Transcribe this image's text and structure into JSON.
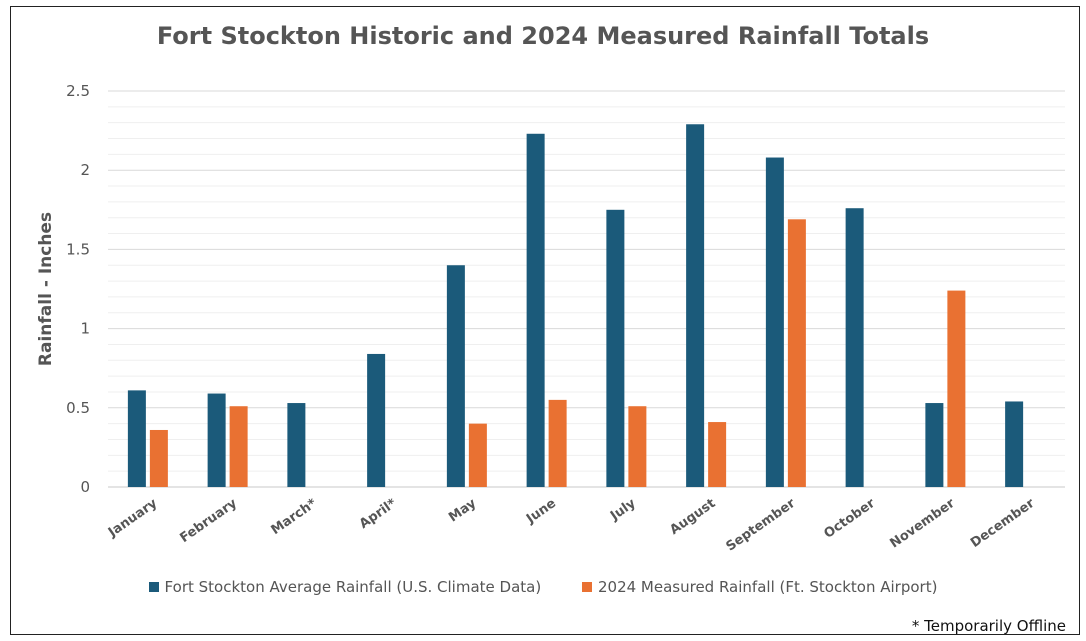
{
  "chart_data": {
    "type": "bar",
    "title": "Fort Stockton Historic and 2024 Measured Rainfall Totals",
    "ylabel": "Rainfall - Inches",
    "xlabel": "",
    "ylim": [
      0,
      2.5
    ],
    "yticks": [
      "0",
      "0.5",
      "1",
      "1.5",
      "2",
      "2.5"
    ],
    "categories": [
      "January",
      "February",
      "March*",
      "April*",
      "May",
      "June",
      "July",
      "August",
      "September",
      "October",
      "November",
      "December"
    ],
    "series": [
      {
        "name": "Fort Stockton Average Rainfall (U.S. Climate Data)",
        "color": "#1b5a7a",
        "values": [
          0.61,
          0.59,
          0.53,
          0.84,
          1.4,
          2.23,
          1.75,
          2.29,
          2.08,
          1.76,
          0.53,
          0.54
        ]
      },
      {
        "name": "2024 Measured Rainfall (Ft. Stockton Airport)",
        "color": "#e97132",
        "values": [
          0.36,
          0.51,
          null,
          null,
          0.4,
          0.55,
          0.51,
          0.41,
          1.69,
          null,
          1.24,
          null
        ]
      }
    ],
    "grid": true,
    "legend_position": "bottom"
  },
  "footnote": "* Temporarily Offline"
}
